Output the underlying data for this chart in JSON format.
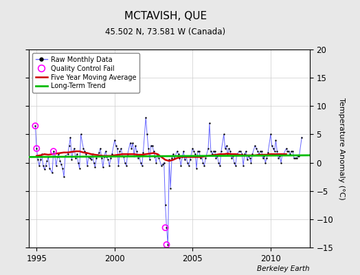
{
  "title": "MCTAVISH, QUE",
  "subtitle": "45.502 N, 73.581 W (Canada)",
  "ylabel": "Temperature Anomaly (°C)",
  "attribution": "Berkeley Earth",
  "ylim": [
    -15,
    20
  ],
  "yticks": [
    -15,
    -10,
    -5,
    0,
    5,
    10,
    15,
    20
  ],
  "xlim": [
    1994.5,
    2012.5
  ],
  "xticks": [
    1995,
    2000,
    2005,
    2010
  ],
  "bg_color": "#e8e8e8",
  "plot_bg_color": "#ffffff",
  "raw_line_color": "#6666ff",
  "raw_dot_color": "#000000",
  "moving_avg_color": "#cc0000",
  "trend_color": "#00bb00",
  "qc_fail_color": "#ff00ff",
  "raw_data_times": [
    1994.917,
    1995.0,
    1995.083,
    1995.167,
    1995.25,
    1995.333,
    1995.417,
    1995.5,
    1995.583,
    1995.667,
    1995.75,
    1995.833,
    1996.0,
    1996.083,
    1996.167,
    1996.25,
    1996.333,
    1996.417,
    1996.5,
    1996.583,
    1996.667,
    1996.75,
    1996.833,
    1997.0,
    1997.083,
    1997.167,
    1997.25,
    1997.333,
    1997.417,
    1997.5,
    1997.583,
    1997.667,
    1997.75,
    1997.833,
    1998.0,
    1998.083,
    1998.167,
    1998.25,
    1998.333,
    1998.417,
    1998.5,
    1998.583,
    1998.667,
    1998.75,
    1998.833,
    1999.0,
    1999.083,
    1999.167,
    1999.25,
    1999.333,
    1999.417,
    1999.5,
    1999.583,
    1999.667,
    1999.75,
    1999.833,
    2000.0,
    2000.083,
    2000.167,
    2000.25,
    2000.333,
    2000.417,
    2000.5,
    2000.583,
    2000.667,
    2000.75,
    2000.833,
    2001.0,
    2001.083,
    2001.167,
    2001.25,
    2001.333,
    2001.417,
    2001.5,
    2001.583,
    2001.667,
    2001.75,
    2001.833,
    2002.0,
    2002.083,
    2002.167,
    2002.25,
    2002.333,
    2002.417,
    2002.5,
    2002.583,
    2002.667,
    2002.75,
    2002.833,
    2003.0,
    2003.083,
    2003.167,
    2003.25,
    2003.333,
    2003.417,
    2003.5,
    2003.583,
    2003.667,
    2003.75,
    2003.833,
    2004.0,
    2004.083,
    2004.167,
    2004.25,
    2004.333,
    2004.417,
    2004.5,
    2004.583,
    2004.667,
    2004.75,
    2004.833,
    2005.0,
    2005.083,
    2005.167,
    2005.25,
    2005.333,
    2005.417,
    2005.5,
    2005.583,
    2005.667,
    2005.75,
    2005.833,
    2006.0,
    2006.083,
    2006.167,
    2006.25,
    2006.333,
    2006.417,
    2006.5,
    2006.583,
    2006.667,
    2006.75,
    2006.833,
    2007.0,
    2007.083,
    2007.167,
    2007.25,
    2007.333,
    2007.417,
    2007.5,
    2007.583,
    2007.667,
    2007.75,
    2007.833,
    2008.0,
    2008.083,
    2008.167,
    2008.25,
    2008.333,
    2008.417,
    2008.5,
    2008.583,
    2008.667,
    2008.75,
    2008.833,
    2009.0,
    2009.083,
    2009.167,
    2009.25,
    2009.333,
    2009.417,
    2009.5,
    2009.583,
    2009.667,
    2009.75,
    2009.833,
    2010.0,
    2010.083,
    2010.167,
    2010.25,
    2010.333,
    2010.417,
    2010.5,
    2010.583,
    2010.667,
    2010.75,
    2010.833,
    2011.0,
    2011.083,
    2011.167,
    2011.25,
    2011.333,
    2011.417,
    2011.5,
    2011.583,
    2011.667,
    2011.75,
    2011.833,
    2012.0
  ],
  "raw_data_values": [
    6.5,
    2.5,
    0.5,
    -0.5,
    0.5,
    1.5,
    -0.5,
    -1.2,
    -0.5,
    0.3,
    1.0,
    -1.0,
    -1.8,
    2.0,
    1.2,
    -0.5,
    1.0,
    1.5,
    0.3,
    -0.3,
    -1.0,
    -2.5,
    1.2,
    1.5,
    3.0,
    4.5,
    0.5,
    2.0,
    2.5,
    0.8,
    1.5,
    0.0,
    -1.0,
    5.0,
    2.5,
    2.0,
    1.5,
    -0.5,
    1.0,
    0.8,
    0.5,
    1.5,
    0.0,
    -0.8,
    0.8,
    1.8,
    2.5,
    0.8,
    -0.8,
    1.0,
    2.0,
    1.0,
    0.5,
    -0.5,
    0.8,
    1.5,
    4.0,
    3.0,
    2.5,
    -0.5,
    2.0,
    2.5,
    1.2,
    1.0,
    0.0,
    -0.5,
    1.5,
    3.5,
    2.5,
    3.5,
    1.2,
    3.0,
    2.0,
    0.8,
    1.2,
    0.0,
    -0.5,
    1.8,
    8.0,
    5.0,
    2.5,
    0.5,
    3.0,
    3.0,
    2.0,
    1.0,
    0.0,
    1.5,
    0.8,
    -0.5,
    -0.3,
    0.0,
    -7.5,
    -11.5,
    -14.5,
    0.5,
    -4.5,
    0.8,
    1.5,
    0.8,
    2.0,
    1.5,
    0.8,
    -0.5,
    1.0,
    2.0,
    0.5,
    1.2,
    0.0,
    -0.5,
    0.5,
    2.5,
    2.0,
    1.5,
    -1.0,
    2.0,
    2.0,
    0.8,
    1.2,
    0.0,
    -0.5,
    0.8,
    2.5,
    7.0,
    2.0,
    1.5,
    2.0,
    2.0,
    0.8,
    1.2,
    0.0,
    -0.5,
    2.0,
    5.0,
    2.5,
    3.0,
    1.5,
    2.5,
    2.0,
    0.8,
    1.2,
    0.0,
    -0.5,
    1.5,
    2.0,
    2.0,
    1.5,
    -0.5,
    1.5,
    2.0,
    0.5,
    1.2,
    0.8,
    0.0,
    1.5,
    3.0,
    2.5,
    2.0,
    1.5,
    2.0,
    2.0,
    0.8,
    1.2,
    0.0,
    0.8,
    1.8,
    5.0,
    3.0,
    2.5,
    2.0,
    4.0,
    2.0,
    0.8,
    1.2,
    0.0,
    1.5,
    1.5,
    2.5,
    2.0,
    2.0,
    1.5,
    2.0,
    2.0,
    0.8,
    0.8,
    0.8,
    1.2,
    1.2,
    4.5
  ],
  "qc_fail_times": [
    1994.917,
    1995.0,
    1996.083,
    2003.25,
    2003.333
  ],
  "qc_fail_values": [
    6.5,
    2.5,
    2.0,
    -11.5,
    -14.5
  ],
  "moving_avg_times": [
    1995.0,
    1995.25,
    1995.5,
    1995.75,
    1996.0,
    1996.25,
    1996.5,
    1996.75,
    1997.0,
    1997.25,
    1997.5,
    1997.75,
    1998.0,
    1998.25,
    1998.5,
    1998.75,
    1999.0,
    1999.25,
    1999.5,
    1999.75,
    2000.0,
    2000.25,
    2000.5,
    2000.75,
    2001.0,
    2001.25,
    2001.5,
    2001.75,
    2002.0,
    2002.25,
    2002.5,
    2002.75,
    2003.0,
    2003.25,
    2003.5,
    2003.75,
    2004.0,
    2004.25,
    2004.5,
    2004.75,
    2005.0,
    2005.25,
    2005.5,
    2005.75,
    2006.0,
    2006.25,
    2006.5,
    2006.75,
    2007.0,
    2007.25,
    2007.5,
    2007.75,
    2008.0,
    2008.25,
    2008.5,
    2008.75,
    2009.0,
    2009.25,
    2009.5,
    2009.75,
    2010.0,
    2010.25,
    2010.5,
    2010.75,
    2011.0
  ],
  "moving_avg_values": [
    1.2,
    1.3,
    1.5,
    1.4,
    1.5,
    1.6,
    1.7,
    1.8,
    1.8,
    1.9,
    2.0,
    2.0,
    1.8,
    1.7,
    1.5,
    1.4,
    1.3,
    1.2,
    1.2,
    1.2,
    1.3,
    1.4,
    1.5,
    1.5,
    1.5,
    1.5,
    1.4,
    1.4,
    1.5,
    1.6,
    1.7,
    1.5,
    1.0,
    0.5,
    0.3,
    0.5,
    0.8,
    1.0,
    1.0,
    1.0,
    1.0,
    1.0,
    1.0,
    1.1,
    1.2,
    1.3,
    1.4,
    1.5,
    1.5,
    1.6,
    1.5,
    1.5,
    1.4,
    1.3,
    1.3,
    1.3,
    1.3,
    1.4,
    1.4,
    1.4,
    1.5,
    1.5,
    1.5,
    1.5,
    1.5
  ],
  "trend_times": [
    1994.5,
    2012.5
  ],
  "trend_values": [
    1.0,
    1.3
  ]
}
